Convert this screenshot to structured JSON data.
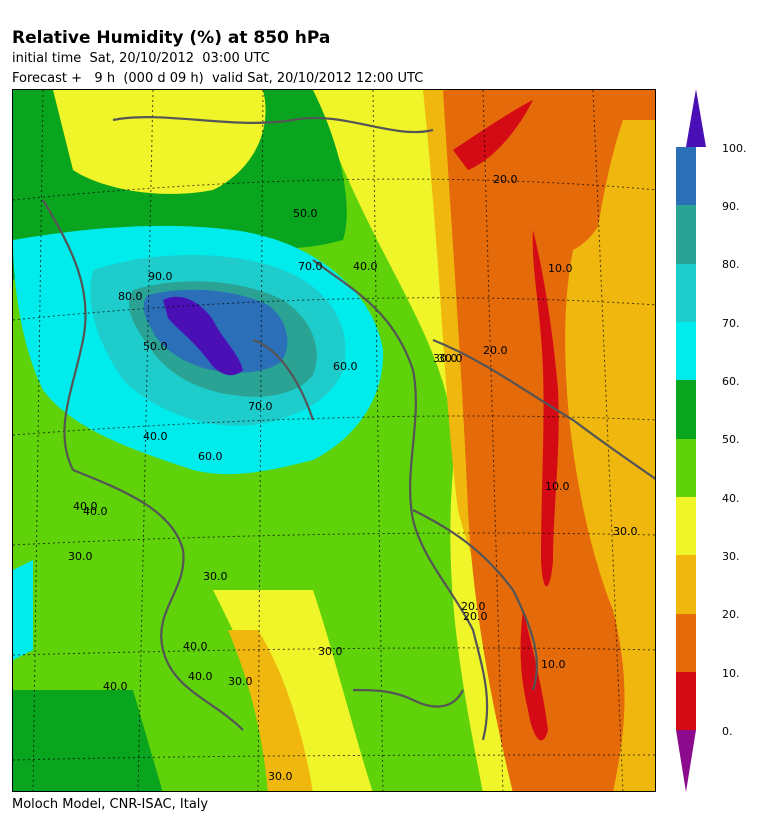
{
  "header": {
    "title": "Relative Humidity (%) at 850 hPa",
    "initial_time": "initial time  Sat, 20/10/2012  03:00 UTC",
    "forecast": "Forecast +   9 h  (000 d 09 h)  valid Sat, 20/10/2012 12:00 UTC"
  },
  "footer": {
    "credit": "Moloch Model, CNR-ISAC, Italy"
  },
  "colorbar": {
    "labels": [
      "100.",
      "90.",
      "80.",
      "70.",
      "60.",
      "50.",
      "40.",
      "30.",
      "20.",
      "10.",
      "0."
    ],
    "colors": {
      "over": "#4b0fb6",
      "90_100": "#2a6fb8",
      "80_90": "#2aa394",
      "70_80": "#1fcccc",
      "60_70": "#00ecec",
      "50_60": "#0aa51e",
      "40_50": "#5fd20a",
      "30_40": "#f0f52a",
      "20_30": "#f0b80e",
      "10_20": "#e46a0a",
      "0_10": "#d40a14",
      "under": "#8c0a8c"
    }
  },
  "map": {
    "contour_labels": [
      "20.0",
      "50.0",
      "40.0",
      "30.0",
      "10.0",
      "30.0",
      "20.0",
      "70.0",
      "60.0",
      "60.0",
      "70.0",
      "50.0",
      "40.0",
      "40.0",
      "40.0",
      "30.0",
      "30.0",
      "40.0",
      "40.0",
      "30.0",
      "20.0",
      "30.0",
      "10.0",
      "20.0",
      "10.0",
      "30.0",
      "30.0",
      "90.0",
      "40.0",
      "80.0"
    ]
  }
}
